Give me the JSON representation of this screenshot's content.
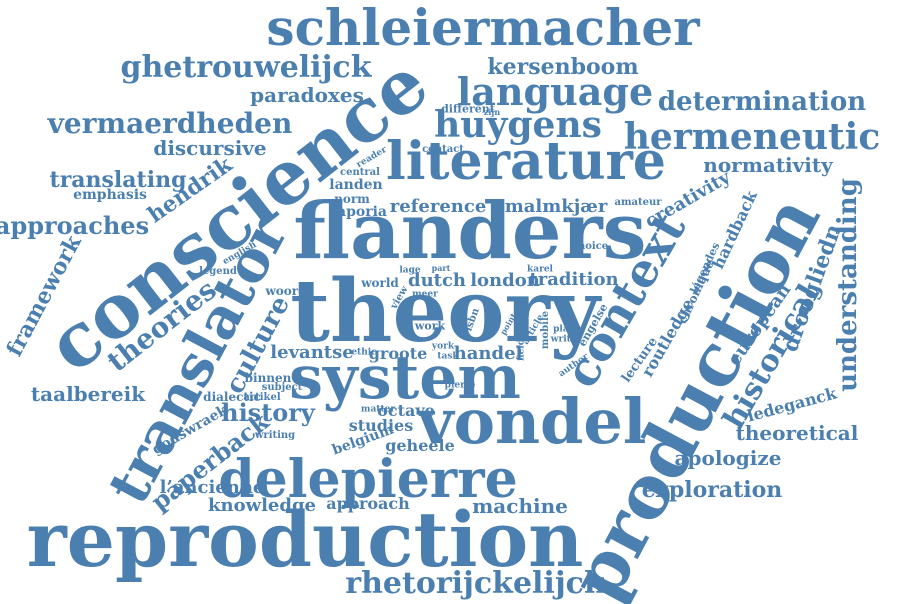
{
  "word_color": "#4a7fb0",
  "background": "#ffffff",
  "words": {
    "schleiermacher": "schleiermacher",
    "conscience": "conscience",
    "flanders": "flanders",
    "theory": "theory",
    "system": "system",
    "vondel": "vondel",
    "production": "production",
    "reproduction": "reproduction",
    "delepierre": "delepierre",
    "literature": "literature",
    "translator": "translator",
    "context": "context",
    "language": "language",
    "huygens": "huygens",
    "hermeneutic": "hermeneutic",
    "ghetrouwelijck": "ghetrouwelijck",
    "kersenboom": "kersenboom",
    "vermaerdheden": "vermaerdheden",
    "determination": "determination",
    "paradoxes": "paradoxes",
    "discursive": "discursive",
    "normativity": "normativity",
    "rhetorijckelijck": "rhetorijckelijck",
    "historical": "historical",
    "understanding": "understanding",
    "droogliedn": "droogliedn",
    "hendrik": "hendrik",
    "translating": "translating",
    "approaches": "approaches",
    "framework": "framework",
    "theories": "theories",
    "culture": "culture",
    "history": "history",
    "paperback": "paperback",
    "knowledge": "knowledge",
    "approach": "approach",
    "machine": "machine",
    "exploration": "exploration",
    "apologize": "apologize",
    "theoretical": "theoretical",
    "ledeganck": "ledeganck",
    "european": "european",
    "creativity": "creativity",
    "hardback": "hardback",
    "routledge": "routledge",
    "tradition": "tradition",
    "dutch": "dutch",
    "london": "london",
    "reference": "reference",
    "malmkjaer": "malmkjær",
    "levantse": "levantse",
    "groote": "groote",
    "handel": "handel",
    "taalbereik": "taalbereik",
    "godswraek": "godswraek",
    "lancienne": "l’ancienne",
    "geheele": "geheele",
    "belgium": "belgium",
    "studies": "studies",
    "octave": "octave",
    "emphasis": "emphasis",
    "landen": "landen",
    "aporia": "aporia",
    "norm": "norm",
    "central": "central",
    "reader": "reader",
    "contact": "contact",
    "different": "different",
    "choice": "choice",
    "amateur": "amateur",
    "world": "world",
    "lage": "lage",
    "part": "part",
    "karel": "karel",
    "meer": "meer",
    "view": "view",
    "work": "work",
    "woord": "woord",
    "legend": "legend",
    "english": "english",
    "binnen": "binnen",
    "subject": "subject",
    "artikel": "artikel",
    "dialectic": "dialectic",
    "writing": "writing",
    "matter": "matter",
    "pierre": "pierre",
    "ethic": "ethic",
    "york": "york",
    "task": "task",
    "field": "field",
    "writer": "writer",
    "author": "author",
    "plato": "plato",
    "article": "article",
    "mobile": "mobile",
    "engelse": "engelse",
    "lecture": "lecture",
    "chronique": "chronique",
    "legendes": "légendes",
    "isbn": "isbn",
    "point": "point",
    "zijn": "zijn",
    "grisbn": "g isbn"
  }
}
